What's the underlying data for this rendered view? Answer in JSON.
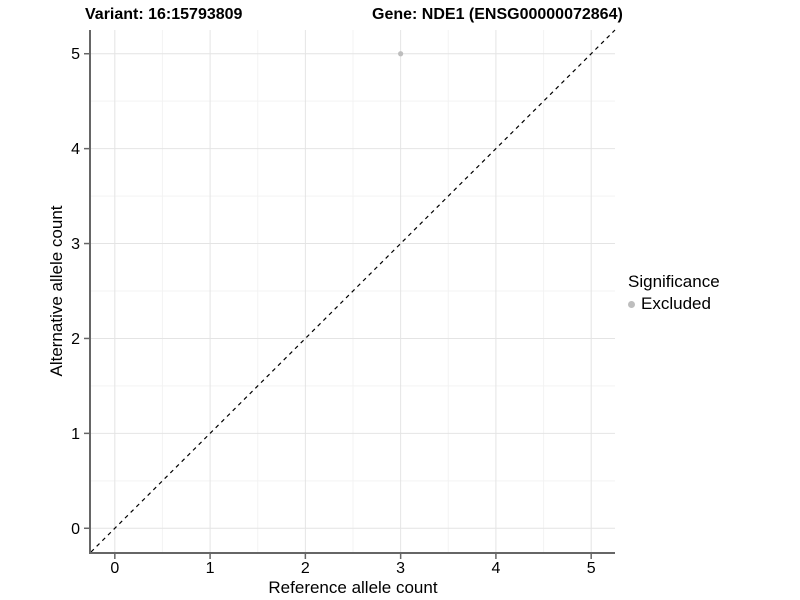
{
  "titles": {
    "variant": "Variant: 16:15793809",
    "gene": "Gene: NDE1 (ENSG00000072864)"
  },
  "chart_data": {
    "type": "scatter",
    "title_left": "Variant: 16:15793809",
    "title_right": "Gene: NDE1 (ENSG00000072864)",
    "xlabel": "Reference allele count",
    "ylabel": "Alternative allele count",
    "xlim": [
      -0.25,
      5.25
    ],
    "ylim": [
      -0.25,
      5.25
    ],
    "x_ticks": [
      0,
      1,
      2,
      3,
      4,
      5
    ],
    "y_ticks": [
      0,
      1,
      2,
      3,
      4,
      5
    ],
    "grid": "major+minor",
    "legend_position": "right",
    "points": [
      {
        "x": 3,
        "y": 5,
        "series": "Excluded",
        "color": "#bebebe"
      }
    ],
    "reference_line": {
      "type": "identity",
      "slope": 1,
      "intercept": 0,
      "style": "dashed",
      "color": "#000000"
    }
  },
  "legend": {
    "title": "Significance",
    "items": [
      {
        "label": "Excluded",
        "color": "#bebebe"
      }
    ]
  },
  "colors": {
    "background": "#ffffff",
    "grid_major": "#e4e4e4",
    "grid_minor": "#f3f3f3",
    "axis_line": "#666666",
    "tick_mark": "#666666",
    "tick_label": "#000000",
    "point": "#bebebe"
  }
}
